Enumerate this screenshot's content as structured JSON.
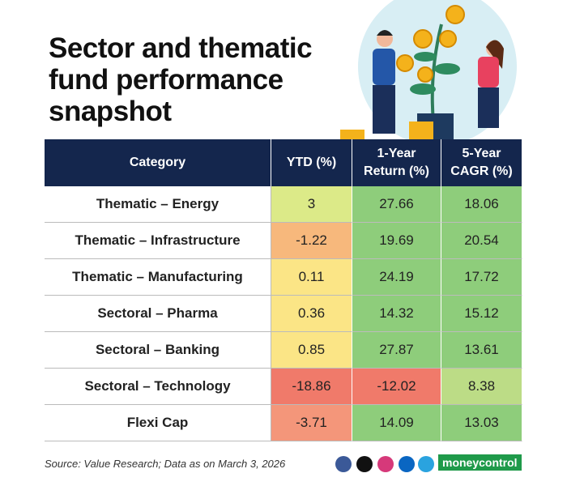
{
  "header": {
    "title": "Sector and thematic fund performance snapshot"
  },
  "table": {
    "columns": [
      "Category",
      "YTD (%)",
      "1-Year Return (%)",
      "5-Year CAGR (%)"
    ],
    "rows": [
      [
        "Thematic – Energy",
        3,
        27.66,
        18.06
      ],
      [
        "Thematic – Infrastructure",
        -1.22,
        19.69,
        20.54
      ],
      [
        "Thematic – Manufacturing",
        0.11,
        24.19,
        17.72
      ],
      [
        "Sectoral – Pharma",
        0.36,
        14.32,
        15.12
      ],
      [
        "Sectoral – Banking",
        0.85,
        27.87,
        13.61
      ],
      [
        "Sectoral – Technology",
        -18.86,
        -12.02,
        8.38
      ],
      [
        "Flexi Cap",
        -3.71,
        14.09,
        13.03
      ]
    ]
  },
  "footer": {
    "source": "Source: Value Research; Data as on March 3, 2026",
    "brand": "moneycontrol"
  }
}
